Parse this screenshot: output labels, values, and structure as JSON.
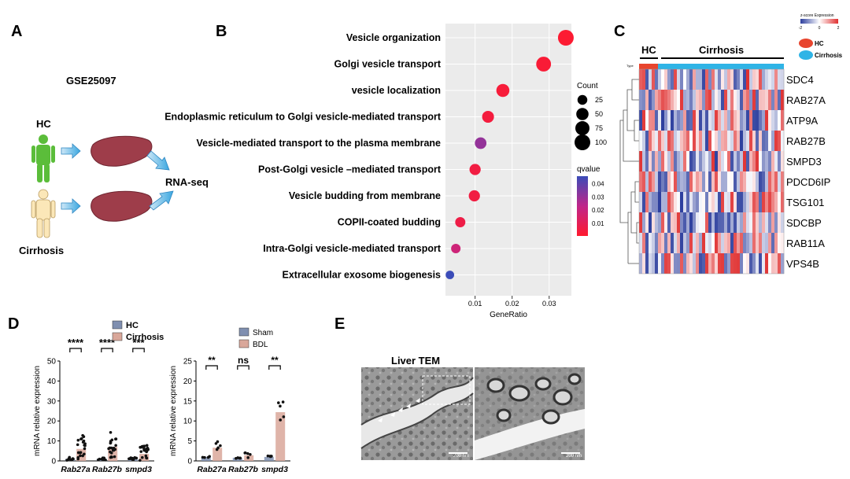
{
  "panels": {
    "A": {
      "letter": "A",
      "dataset": "GSE25097",
      "group1": "HC",
      "group2": "Cirrhosis",
      "method": "RNA-seq"
    },
    "B": {
      "letter": "B",
      "xlabel": "GeneRatio",
      "size_legend_title": "Count",
      "color_legend_title": "qvalue"
    },
    "C": {
      "letter": "C",
      "group_hc": "HC",
      "group_cirrhosis": "Cirrhosis",
      "legend_title": "z-score Expression",
      "legend_hc": "HC",
      "legend_cirrhosis": "Cirrhosis",
      "type_label": "Type"
    },
    "D": {
      "letter": "D",
      "ylabel": "mRNA relative expression"
    },
    "E": {
      "letter": "E",
      "title": "Liver TEM",
      "scale1": "200 nm",
      "scale2": "200 nm"
    }
  },
  "colors": {
    "dot_low_q": "#ff1a2e",
    "dot_high_q": "#3b4cb8",
    "hc_bar": "#7f8fb0",
    "cirrhosis_bar": "#d9a79a",
    "heat_red": "#e03030",
    "heat_blue": "#2d3f9e",
    "hc_annot": "#e8452e",
    "cirrhosis_annot": "#2fb4e6"
  },
  "chart_data": [
    {
      "type": "scatter",
      "panel": "B",
      "xlabel": "GeneRatio",
      "xticks": [
        0.01,
        0.02,
        0.03
      ],
      "xlim": [
        0.002,
        0.036
      ],
      "size_legend": {
        "title": "Count",
        "values": [
          25,
          50,
          75,
          100
        ]
      },
      "color_legend": {
        "title": "qvalue",
        "ticks": [
          0.04,
          0.03,
          0.02,
          0.01
        ]
      },
      "terms": [
        {
          "name": "Vesicle organization",
          "ratio": 0.0345,
          "count": 100,
          "q": 0.001
        },
        {
          "name": "Golgi vesicle transport",
          "ratio": 0.0285,
          "count": 85,
          "q": 0.002
        },
        {
          "name": "vesicle localization",
          "ratio": 0.0175,
          "count": 60,
          "q": 0.003
        },
        {
          "name": "Endoplasmic reticulum to Golgi vesicle-mediated transport",
          "ratio": 0.0135,
          "count": 45,
          "q": 0.004
        },
        {
          "name": "Vesicle-mediated transport to the plasma membrane",
          "ratio": 0.0115,
          "count": 42,
          "q": 0.03
        },
        {
          "name": "Post-Golgi vesicle –mediated transport",
          "ratio": 0.01,
          "count": 38,
          "q": 0.005
        },
        {
          "name": "Vesicle budding from membrane",
          "ratio": 0.0098,
          "count": 38,
          "q": 0.005
        },
        {
          "name": "COPII-coated budding",
          "ratio": 0.006,
          "count": 28,
          "q": 0.006
        },
        {
          "name": "Intra-Golgi vesicle-mediated transport",
          "ratio": 0.0048,
          "count": 22,
          "q": 0.018
        },
        {
          "name": "Extracellular exosome biogenesis",
          "ratio": 0.0032,
          "count": 15,
          "q": 0.045
        }
      ]
    },
    {
      "type": "heatmap",
      "panel": "C",
      "rows": [
        "SDC4",
        "RAB27A",
        "ATP9A",
        "RAB27B",
        "SMPD3",
        "PDCD6IP",
        "TSG101",
        "SDCBP",
        "RAB11A",
        "VPS4B"
      ],
      "groups": [
        {
          "name": "HC",
          "n": 6
        },
        {
          "name": "Cirrhosis",
          "n": 40
        }
      ],
      "colorbar_ticks": [
        "-2",
        "0",
        "2"
      ]
    },
    {
      "type": "bar",
      "panel": "D1",
      "categories": [
        "Rab27a",
        "Rab27b",
        "smpd3"
      ],
      "ylabel": "mRNA relative expression",
      "ylim": [
        0,
        50
      ],
      "yticks": [
        0,
        10,
        20,
        30,
        40,
        50
      ],
      "series": [
        {
          "name": "HC",
          "values": [
            1.0,
            1.0,
            1.0
          ]
        },
        {
          "name": "Cirrhosis",
          "values": [
            6.0,
            7.0,
            3.5
          ]
        }
      ],
      "significance": [
        "****",
        "****",
        "***"
      ]
    },
    {
      "type": "bar",
      "panel": "D2",
      "categories": [
        "Rab27a",
        "Rab27b",
        "smpd3"
      ],
      "ylabel": "mRNA relative expression",
      "ylim": [
        0,
        25
      ],
      "yticks": [
        0,
        5,
        10,
        15,
        20,
        25
      ],
      "series": [
        {
          "name": "Sham",
          "values": [
            1.0,
            0.8,
            1.0
          ]
        },
        {
          "name": "BDL",
          "values": [
            3.3,
            1.4,
            12.2
          ]
        }
      ],
      "significance": [
        "**",
        "ns",
        "**"
      ]
    }
  ]
}
